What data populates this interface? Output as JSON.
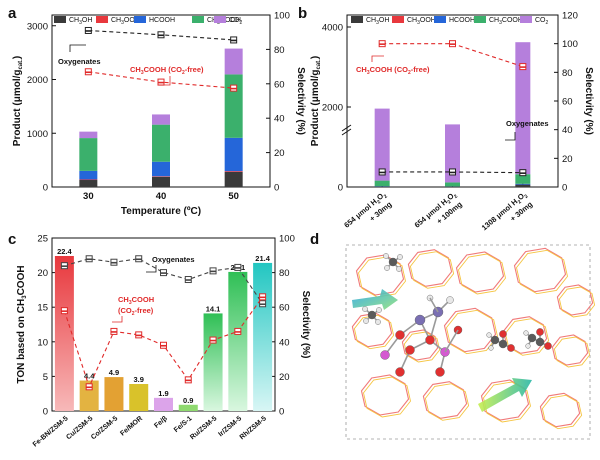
{
  "panel_letters": [
    "a",
    "b",
    "c",
    "d"
  ],
  "chart_data": [
    {
      "panel": "a",
      "type": "bar",
      "stacked": true,
      "categories": [
        "30",
        "40",
        "50"
      ],
      "xlabel": "Temperature (ºC)",
      "ylabel": "Product (μmol/g_cat.)",
      "ylabel_main": "Product (",
      "ylabel_unit": "μmol/g",
      "ylabel_sub": "cat.",
      "ylabel_tail": ")",
      "y2label": "Selectivity (%)",
      "ylim": [
        0,
        3200
      ],
      "yticks": [
        0,
        1000,
        2000,
        3000
      ],
      "y2lim": [
        0,
        100
      ],
      "y2ticks": [
        0,
        20,
        40,
        60,
        80,
        100
      ],
      "legend": "top",
      "series": [
        {
          "name": "CH3OH",
          "label_base": "CH",
          "label_sub1": "3",
          "label_rest": "OH",
          "label_sub2": "",
          "color": "#3a3a3a",
          "values": [
            130,
            190,
            280
          ]
        },
        {
          "name": "CH3OOH",
          "label_base": "CH",
          "label_sub1": "3",
          "label_rest": "OOH",
          "label_sub2": "",
          "color": "#e8383d",
          "values": [
            10,
            10,
            15
          ]
        },
        {
          "name": "HCOOH",
          "label_base": "HCOOH",
          "label_sub1": "",
          "label_rest": "",
          "label_sub2": "",
          "color": "#2566d9",
          "values": [
            160,
            270,
            620
          ]
        },
        {
          "name": "CH3COOH",
          "label_base": "CH",
          "label_sub1": "3",
          "label_rest": "COOH",
          "label_sub2": "",
          "color": "#3bb06c",
          "values": [
            610,
            690,
            1180
          ]
        },
        {
          "name": "CO2",
          "label_base": "CO",
          "label_sub1": "",
          "label_rest": "",
          "label_sub2": "2",
          "color": "#b57fdc",
          "values": [
            120,
            190,
            480
          ]
        }
      ],
      "lines": [
        {
          "name": "Oxygenates",
          "color": "#222222",
          "dash": true,
          "values": [
            91,
            88.5,
            85.5
          ]
        },
        {
          "name": "CH3COOH (CO2-free)",
          "color": "#e02a2a",
          "dash": true,
          "values": [
            67,
            61,
            57.5
          ]
        }
      ],
      "annotations": {
        "oxygenates": "Oxygenates",
        "acetic_main": "CH",
        "acetic_sub": "3",
        "acetic_rest": "COOH (CO",
        "acetic_sub2": "2",
        "acetic_end": "-free)"
      }
    },
    {
      "panel": "b",
      "type": "bar",
      "stacked": true,
      "categories": [
        {
          "line1_a": "654 μmol H",
          "line1_sub": "2",
          "line1_b": "O",
          "line1_sub2": "2",
          "line2": "+ 30mg"
        },
        {
          "line1_a": "654 μmol H",
          "line1_sub": "2",
          "line1_b": "O",
          "line1_sub2": "2",
          "line2": "+ 100mg"
        },
        {
          "line1_a": "1308 μmol H",
          "line1_sub": "2",
          "line1_b": "O",
          "line1_sub2": "2",
          "line2": "+ 30mg"
        }
      ],
      "ylabel": "Product (μmol/g_cat.)",
      "ylabel_main": "Product (",
      "ylabel_unit": "μmol/g",
      "ylabel_sub": "cat.",
      "ylabel_tail": ")",
      "y2label": "Selectivity (%)",
      "ylim": [
        0,
        4300
      ],
      "axis_break": true,
      "yticks": [
        0,
        2000,
        4000
      ],
      "y2lim": [
        0,
        120
      ],
      "y2ticks": [
        0,
        20,
        40,
        60,
        80,
        100,
        120
      ],
      "legend": "top",
      "series": [
        {
          "name": "CH3OH",
          "values": [
            10,
            10,
            60
          ]
        },
        {
          "name": "CH3OOH",
          "values": [
            0,
            0,
            0
          ]
        },
        {
          "name": "HCOOH",
          "values": [
            10,
            5,
            20
          ]
        },
        {
          "name": "CH3COOH",
          "values": [
            140,
            100,
            240
          ]
        },
        {
          "name": "CO2",
          "values": [
            1800,
            1450,
            3300
          ]
        }
      ],
      "lines": [
        {
          "name": "Oxygenates",
          "color": "#222222",
          "dash": true,
          "values": [
            10.5,
            10.5,
            10
          ]
        },
        {
          "name": "CH3COOH (CO2-free)",
          "color": "#e02a2a",
          "dash": true,
          "values": [
            100,
            100,
            84
          ]
        }
      ],
      "annotations": {
        "oxygenates": "Oxygenates",
        "acetic_main": "CH",
        "acetic_sub": "3",
        "acetic_rest": "COOH (CO",
        "acetic_sub2": "2",
        "acetic_end": "-free)"
      }
    },
    {
      "panel": "c",
      "type": "bar",
      "categories": [
        "Fe-BN/ZSM-5",
        "Cu/ZSM-5",
        "Co/ZSM-5",
        "Fe/MOR",
        "Fe/β",
        "Fe/S-1",
        "Ru/ZSM-5",
        "Ir/ZSM-5",
        "Rh/ZSM-5"
      ],
      "values": [
        22.4,
        4.4,
        4.9,
        3.9,
        1.9,
        0.9,
        14.1,
        20.1,
        21.4
      ],
      "data_labels": [
        "22.4",
        "4.4",
        "4.9",
        "3.9",
        "1.9",
        "0.9",
        "14.1",
        "20.1",
        "21.4"
      ],
      "bar_colors": [
        "#e8383d",
        "#e3b341",
        "#e3a133",
        "#d9c22a",
        "#dca4ea",
        "#8fd96f",
        "#3fc05a",
        "#43d06a",
        "#30c7bf"
      ],
      "ylabel_main": "TON based on CH",
      "ylabel_sub": "3",
      "ylabel_tail": "COOH",
      "y2label": "Selectivity (%)",
      "ylim": [
        0,
        25
      ],
      "yticks": [
        0,
        5,
        10,
        15,
        20,
        25
      ],
      "y2lim": [
        0,
        100
      ],
      "y2ticks": [
        0,
        20,
        40,
        60,
        80,
        100
      ],
      "lines": [
        {
          "name": "Oxygenates",
          "color": "#444444",
          "dash": true,
          "values": [
            84,
            88,
            86,
            88,
            80,
            76,
            81,
            83,
            62
          ]
        },
        {
          "name": "CH3COOH (CO2-free)",
          "color": "#e02a2a",
          "dash": true,
          "values": [
            58,
            14,
            46,
            44,
            38,
            18,
            41,
            46,
            66
          ]
        }
      ],
      "annotations": {
        "oxygenates": "Oxygenates",
        "acetic_line1_main": "CH",
        "acetic_line1_sub": "3",
        "acetic_line1_rest": "COOH",
        "acetic_line2_main": "(CO",
        "acetic_line2_sub": "2",
        "acetic_line2_rest": "-free)"
      }
    }
  ]
}
